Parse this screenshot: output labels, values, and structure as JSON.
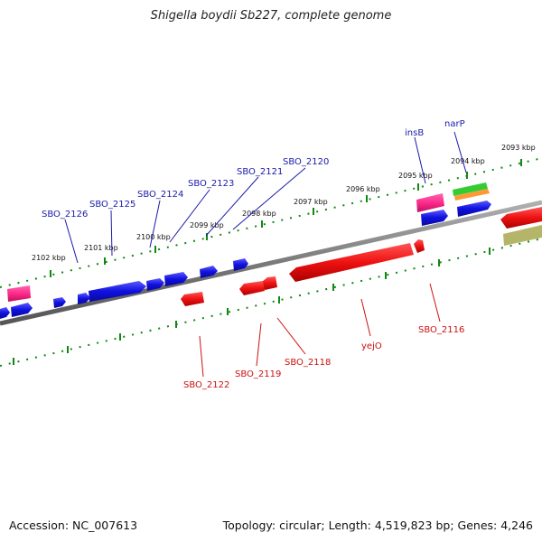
{
  "title": "Shigella boydii Sb227, complete genome",
  "footer": {
    "accession": "Accession: NC_007613",
    "summary": "Topology: circular; Length: 4,519,823 bp; Genes: 4,246"
  },
  "colors": {
    "forward_gene": "#1010e0",
    "reverse_gene": "#ee1111",
    "insertion": "#ff2a8a",
    "backbone": "#7a7a7a",
    "ticks": "#118811",
    "label_top": "#1a1aaa",
    "label_bottom": "#cc1111"
  },
  "kbp_labels": [
    "2093 kbp",
    "2094 kbp",
    "2095 kbp",
    "2096 kbp",
    "2097 kbp",
    "2098 kbp",
    "2099 kbp",
    "2100 kbp",
    "2101 kbp",
    "2102 kbp"
  ],
  "top_labels": [
    "narP",
    "insB",
    "SBO_2120",
    "SBO_2121",
    "SBO_2123",
    "SBO_2124",
    "SBO_2125",
    "SBO_2126"
  ],
  "bottom_labels": [
    "SBO_2116",
    "yejO",
    "SBO_2118",
    "SBO_2119",
    "SBO_2122"
  ]
}
